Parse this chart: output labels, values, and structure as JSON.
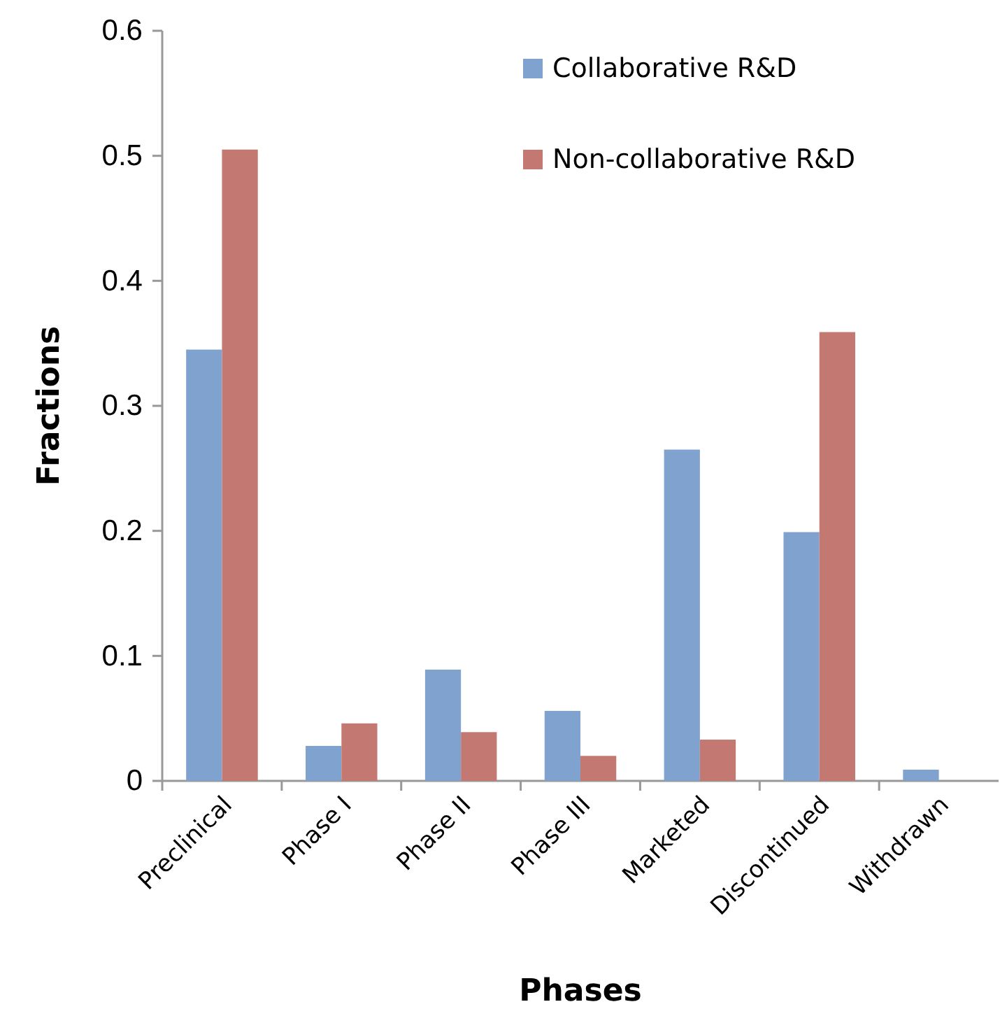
{
  "chart_data": {
    "type": "bar",
    "xlabel": "Phases",
    "ylabel": "Fractions",
    "categories": [
      "Preclinical",
      "Phase I",
      "Phase II",
      "Phase III",
      "Marketed",
      "Discontinued",
      "Withdrawn"
    ],
    "series": [
      {
        "name": "Collaborative R&D",
        "color": "#7fa2cf",
        "values": [
          0.345,
          0.028,
          0.089,
          0.056,
          0.265,
          0.199,
          0.009
        ]
      },
      {
        "name": "Non-collaborative R&D",
        "color": "#c47872",
        "values": [
          0.505,
          0.046,
          0.039,
          0.02,
          0.033,
          0.359,
          0
        ]
      }
    ],
    "ylim": [
      0,
      0.6
    ],
    "yticks": [
      0,
      0.1,
      0.2,
      0.3,
      0.4,
      0.5,
      0.6
    ],
    "grid": false,
    "legend": "top right"
  }
}
